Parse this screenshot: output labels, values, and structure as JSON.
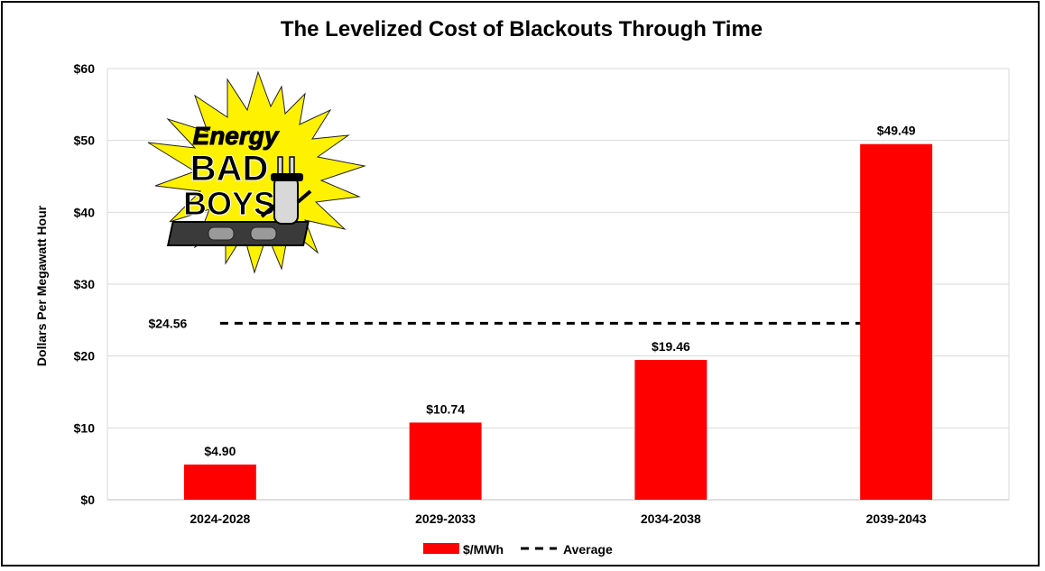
{
  "chart_data": {
    "type": "bar",
    "title": "The Levelized Cost of Blackouts Through Time",
    "ylabel": "Dollars Per Megawatt Hour",
    "xlabel": "",
    "categories": [
      "2024-2028",
      "2029-2033",
      "2034-2038",
      "2039-2043"
    ],
    "series": [
      {
        "name": "$/MWh",
        "values": [
          4.9,
          10.74,
          19.46,
          49.49
        ],
        "color": "#ff0000",
        "labels": [
          "$4.90",
          "$10.74",
          "$19.46",
          "$49.49"
        ]
      }
    ],
    "average": {
      "name": "Average",
      "value": 24.56,
      "label": "$24.56",
      "color": "#000000"
    },
    "ylim": [
      0,
      60
    ],
    "yticks": [
      0,
      10,
      20,
      30,
      40,
      50,
      60
    ],
    "ytick_labels": [
      "$0",
      "$10",
      "$20",
      "$30",
      "$40",
      "$50",
      "$60"
    ],
    "grid": true,
    "legend_position": "bottom"
  },
  "logo": {
    "line1": "Energy",
    "line2": "BAD",
    "line3": "BOYS"
  }
}
